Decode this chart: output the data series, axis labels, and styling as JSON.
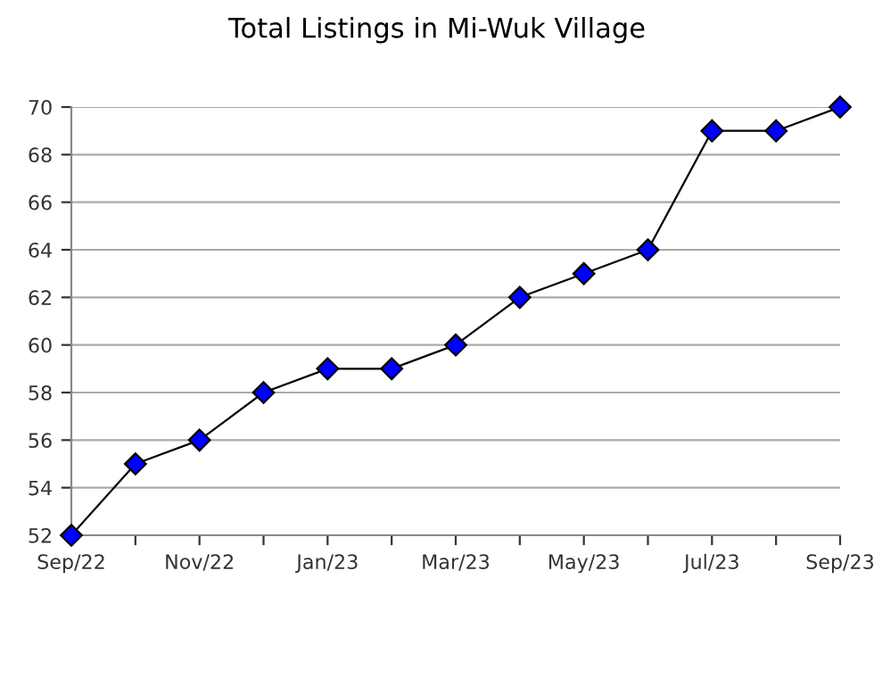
{
  "chart_data": {
    "type": "line",
    "title": "Total Listings in Mi-Wuk Village",
    "categories": [
      "Sep/22",
      null,
      "Nov/22",
      null,
      "Jan/23",
      null,
      "Mar/23",
      null,
      "May/23",
      null,
      "Jul/23",
      null,
      "Sep/23"
    ],
    "series": [
      {
        "color": "#0000ff",
        "values": [
          52,
          55,
          56,
          58,
          59,
          59,
          60,
          62,
          63,
          64,
          69,
          69,
          70
        ]
      }
    ],
    "ylim": [
      52,
      70
    ],
    "yticks": [
      52,
      54,
      56,
      58,
      60,
      62,
      64,
      66,
      68,
      70
    ],
    "grid": "y",
    "marker": "diamond",
    "line_style": "solid"
  }
}
